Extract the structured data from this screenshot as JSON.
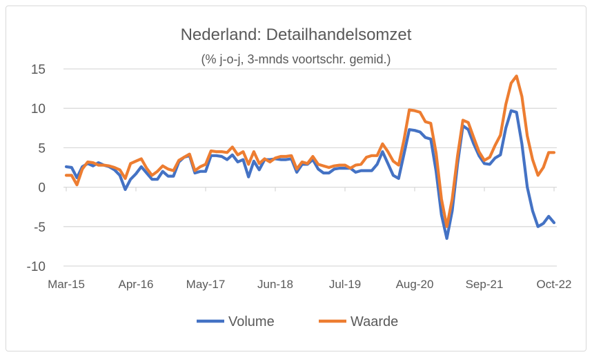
{
  "chart_data": {
    "type": "line",
    "title": "Nederland: Detailhandelsomzet",
    "subtitle": "(% j-o-j, 3-mnds voortschr. gemid.)",
    "xlabel": "",
    "ylabel": "",
    "ylim": [
      -10,
      15
    ],
    "yticks": [
      15,
      10,
      5,
      0,
      -5,
      -10
    ],
    "ytick_labels": [
      "15",
      "10",
      "5",
      "0",
      "-5",
      "-10"
    ],
    "x_start": "Mar-15",
    "x_end": "Oct-22",
    "x_frequency": "monthly",
    "xtick_labels": [
      "Mar-15",
      "Apr-16",
      "May-17",
      "Jun-18",
      "Jul-19",
      "Aug-20",
      "Sep-21",
      "Oct-22"
    ],
    "xtick_interval_months": 13,
    "grid": true,
    "legend_position": "bottom",
    "series": [
      {
        "name": "Volume",
        "color": "#4472c4",
        "values": [
          2.6,
          2.5,
          1.2,
          2.6,
          3.0,
          2.7,
          3.1,
          2.8,
          2.6,
          2.2,
          1.5,
          -0.3,
          1.0,
          1.7,
          2.6,
          1.8,
          1.0,
          1.0,
          2.0,
          1.4,
          1.4,
          3.2,
          3.8,
          4.0,
          1.8,
          2.0,
          2.0,
          4.0,
          4.0,
          3.9,
          3.5,
          4.1,
          3.2,
          3.5,
          1.3,
          3.3,
          2.2,
          3.5,
          3.5,
          3.6,
          3.5,
          3.5,
          3.6,
          1.9,
          2.9,
          2.9,
          3.5,
          2.3,
          1.8,
          1.8,
          2.3,
          2.4,
          2.4,
          2.4,
          1.9,
          2.1,
          2.1,
          2.1,
          2.9,
          4.5,
          3.0,
          1.5,
          1.1,
          4.2,
          7.3,
          7.2,
          7.0,
          6.3,
          6.1,
          2.0,
          -3.5,
          -6.5,
          -3.0,
          3.0,
          7.8,
          7.3,
          5.5,
          4.0,
          3.0,
          2.9,
          3.7,
          4.1,
          7.5,
          9.7,
          9.5,
          5.5,
          0.0,
          -3.0,
          -5.0,
          -4.6,
          -3.7,
          -4.5
        ]
      },
      {
        "name": "Waarde",
        "color": "#ed7d31",
        "values": [
          1.5,
          1.5,
          0.3,
          2.3,
          3.2,
          3.1,
          2.8,
          2.8,
          2.7,
          2.5,
          2.2,
          1.1,
          3.0,
          3.3,
          3.6,
          2.4,
          1.5,
          2.0,
          2.7,
          2.3,
          2.1,
          3.4,
          3.8,
          4.2,
          2.1,
          2.6,
          2.9,
          4.6,
          4.5,
          4.5,
          4.4,
          5.1,
          4.1,
          4.5,
          2.9,
          4.5,
          3.0,
          3.6,
          3.2,
          3.7,
          3.9,
          3.9,
          4.0,
          2.3,
          3.2,
          3.0,
          3.9,
          2.9,
          2.7,
          2.5,
          2.7,
          2.8,
          2.8,
          2.4,
          2.8,
          2.9,
          3.8,
          4.0,
          4.0,
          5.5,
          4.5,
          3.3,
          2.8,
          6.0,
          9.8,
          9.7,
          9.5,
          8.3,
          8.1,
          4.3,
          -1.5,
          -5.0,
          -1.5,
          4.0,
          8.5,
          8.2,
          6.3,
          4.5,
          3.4,
          3.8,
          5.3,
          6.6,
          10.5,
          13.2,
          14.1,
          11.5,
          6.5,
          3.5,
          1.5,
          2.5,
          4.4,
          4.4
        ]
      }
    ]
  }
}
